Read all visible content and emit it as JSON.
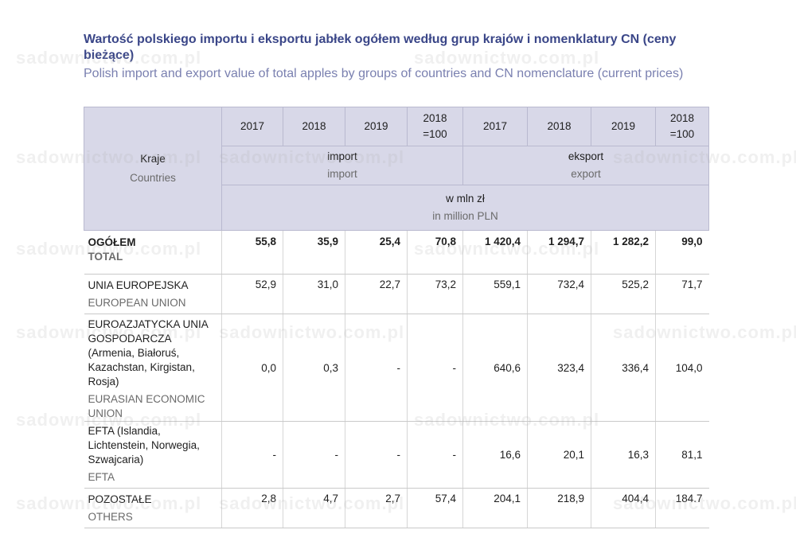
{
  "title": {
    "pl": "Wartość polskiego importu i eksportu jabłek ogółem według grup krajów i nomenklatury CN (ceny bieżące)",
    "en": "Polish import and export value of total apples by groups of countries and CN nomenclature (current prices)"
  },
  "header": {
    "kraje_pl": "Kraje",
    "kraje_en": "Countries",
    "years": [
      "2017",
      "2018",
      "2019",
      "2018\n=100",
      "2017",
      "2018",
      "2019",
      "2018\n=100"
    ],
    "import_pl": "import",
    "import_en": "import",
    "export_pl": "eksport",
    "export_en": "export",
    "unit_pl": "w mln zł",
    "unit_en": "in million PLN"
  },
  "rows": [
    {
      "label_pl": "OGÓŁEM",
      "label_en": "TOTAL",
      "values": [
        "55,8",
        "35,9",
        "25,4",
        "70,8",
        "1 420,4",
        "1 294,7",
        "1 282,2",
        "99,0"
      ]
    },
    {
      "label_pl": "UNIA EUROPEJSKA",
      "label_en": "EUROPEAN UNION",
      "values": [
        "52,9",
        "31,0",
        "22,7",
        "73,2",
        "559,1",
        "732,4",
        "525,2",
        "71,7"
      ]
    },
    {
      "label_pl": "EUROAZJATYCKA UNIA GOSPODARCZA (Armenia, Białoruś, Kazachstan, Kirgistan, Rosja)",
      "label_en": "EURASIAN ECONOMIC UNION",
      "values": [
        "0,0",
        "0,3",
        "-",
        "-",
        "640,6",
        "323,4",
        "336,4",
        "104,0"
      ]
    },
    {
      "label_pl": "EFTA (Islandia, Lichtenstein, Norwegia, Szwajcaria)",
      "label_en": "EFTA",
      "values": [
        "-",
        "-",
        "-",
        "-",
        "16,6",
        "20,1",
        "16,3",
        "81,1"
      ]
    },
    {
      "label_pl": "POZOSTAŁE",
      "label_en": "OTHERS",
      "values": [
        "2,8",
        "4,7",
        "2,7",
        "57,4",
        "204,1",
        "218,9",
        "404,4",
        "184.7"
      ]
    }
  ],
  "watermark": "sadownictwo.com.pl"
}
